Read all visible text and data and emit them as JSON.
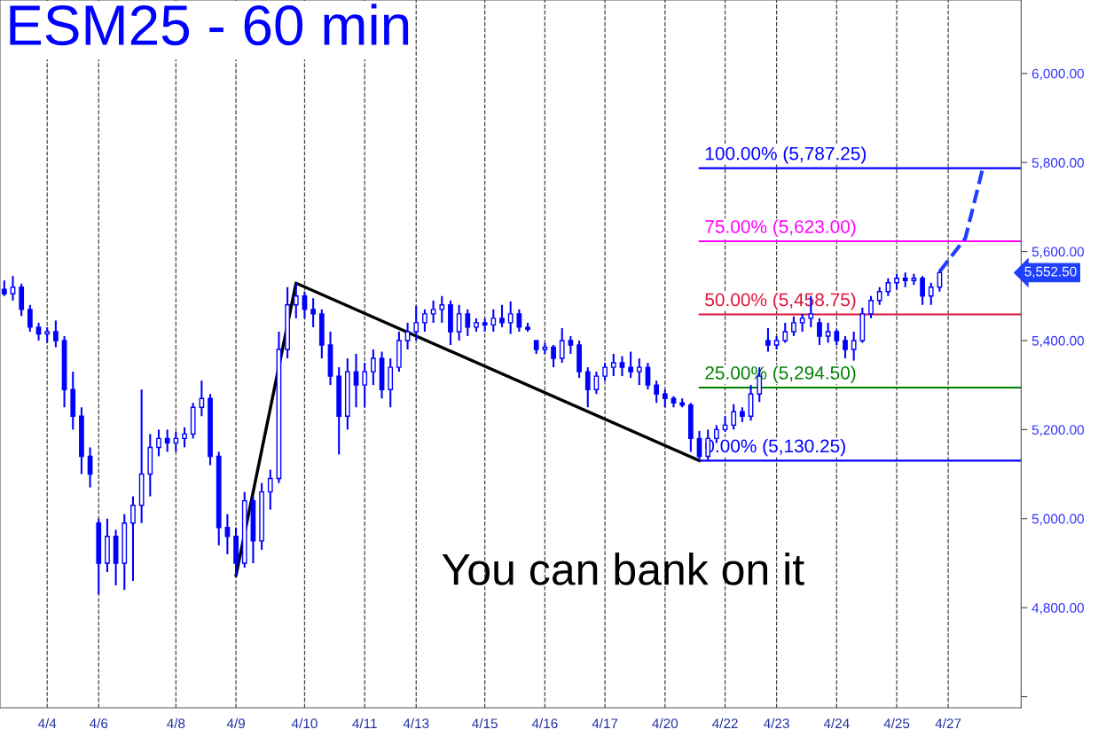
{
  "chart_data": {
    "type": "candlestick",
    "title": "ESM25 - 60 min",
    "annotations": [
      "You can bank on it",
      "5,552.50"
    ],
    "categories": [
      null,
      null,
      null,
      null,
      null,
      "4/4",
      null,
      null,
      null,
      null,
      null,
      "4/6",
      null,
      null,
      null,
      null,
      null,
      null,
      null,
      null,
      "4/8",
      null,
      null,
      null,
      null,
      null,
      null,
      "4/9",
      null,
      null,
      null,
      null,
      null,
      null,
      null,
      "4/10",
      null,
      null,
      null,
      null,
      null,
      null,
      "4/11",
      null,
      null,
      null,
      null,
      null,
      "4/13",
      null,
      null,
      null,
      null,
      null,
      null,
      null,
      "4/15",
      null,
      null,
      null,
      null,
      null,
      null,
      "4/16",
      null,
      null,
      null,
      null,
      null,
      null,
      "4/17",
      null,
      null,
      null,
      null,
      null,
      null,
      "4/20",
      null,
      null,
      null,
      null,
      null,
      null,
      "4/22",
      null,
      null,
      null,
      null,
      null,
      "4/23",
      null,
      null,
      null,
      null,
      null,
      null,
      "4/24",
      null,
      null,
      null,
      null,
      null,
      null,
      "4/25",
      null,
      null,
      null,
      null,
      null,
      "4/27",
      null,
      null,
      null,
      null,
      null,
      null,
      null,
      null
    ],
    "ylim": [
      4575,
      6165
    ],
    "yticks": [
      {
        "value": 4600,
        "label": null
      },
      {
        "value": 4800,
        "label": "4,800.00"
      },
      {
        "value": 5000,
        "label": "5,000.00"
      },
      {
        "value": 5200,
        "label": "5,200.00"
      },
      {
        "value": 5400,
        "label": "5,400.00"
      },
      {
        "value": 5600,
        "label": "5,600.00"
      },
      {
        "value": 5800,
        "label": "5,800.00"
      },
      {
        "value": 6000,
        "label": "6,000.00"
      }
    ],
    "grid": "x",
    "ref_lines": [
      {
        "axis": "y",
        "value": 5787.25,
        "label": "100.00% (5,787.25)",
        "color": "#0000ff"
      },
      {
        "axis": "y",
        "value": 5623.0,
        "label": "75.00% (5,623.00)",
        "color": "#ff00ff"
      },
      {
        "axis": "y",
        "value": 5458.75,
        "label": "50.00% (5,458.75)",
        "color": "#dc143c"
      },
      {
        "axis": "y",
        "value": 5294.5,
        "label": "25.00% (5,294.50)",
        "color": "#008000"
      },
      {
        "axis": "y",
        "value": 5130.25,
        "label": "0.00% (5,130.25)",
        "color": "#0000ff"
      }
    ],
    "series": [
      {
        "type": "line",
        "color": "#000000",
        "line_style": "solid",
        "values": [
          null,
          null,
          null,
          null,
          null,
          null,
          null,
          null,
          null,
          null,
          null,
          null,
          null,
          null,
          null,
          null,
          null,
          null,
          null,
          null,
          null,
          null,
          null,
          null,
          null,
          null,
          null,
          4872,
          null,
          null,
          null,
          null,
          null,
          null,
          5529,
          null,
          null,
          null,
          null,
          null,
          null,
          null,
          null,
          null,
          null,
          null,
          null,
          null,
          null,
          null,
          null,
          null,
          null,
          null,
          null,
          null,
          null,
          null,
          null,
          null,
          null,
          null,
          null,
          null,
          null,
          null,
          null,
          null,
          null,
          null,
          null,
          null,
          null,
          null,
          null,
          null,
          null,
          null,
          null,
          null,
          null,
          5130.25,
          null,
          null,
          null,
          null,
          null,
          null,
          null,
          null,
          null,
          null,
          null,
          null,
          null,
          null,
          null,
          null,
          null,
          null,
          null,
          null,
          null,
          null,
          null,
          null,
          null,
          null,
          null,
          null,
          null,
          null,
          null,
          null,
          null,
          null,
          null,
          null,
          null
        ]
      },
      {
        "type": "line",
        "color": "#1f3fff",
        "line_style": "dashed",
        "values": [
          null,
          null,
          null,
          null,
          null,
          null,
          null,
          null,
          null,
          null,
          null,
          null,
          null,
          null,
          null,
          null,
          null,
          null,
          null,
          null,
          null,
          null,
          null,
          null,
          null,
          null,
          null,
          null,
          null,
          null,
          null,
          null,
          null,
          null,
          null,
          null,
          null,
          null,
          null,
          null,
          null,
          null,
          null,
          null,
          null,
          null,
          null,
          null,
          null,
          null,
          null,
          null,
          null,
          null,
          null,
          null,
          null,
          null,
          null,
          null,
          null,
          null,
          null,
          null,
          null,
          null,
          null,
          null,
          null,
          null,
          null,
          null,
          null,
          null,
          null,
          null,
          null,
          null,
          null,
          null,
          null,
          null,
          null,
          null,
          null,
          null,
          null,
          null,
          null,
          null,
          null,
          null,
          null,
          null,
          null,
          null,
          null,
          null,
          null,
          null,
          null,
          null,
          null,
          null,
          null,
          null,
          null,
          null,
          null,
          5555,
          null,
          null,
          5630,
          null,
          5785,
          null,
          null,
          null,
          null
        ]
      },
      {
        "color": "#0000ff",
        "ohlc": [
          [
            5515,
            5535,
            5500,
            5505
          ],
          [
            5505,
            5545,
            5490,
            5520
          ],
          [
            5520,
            5528,
            5455,
            5470
          ],
          [
            5470,
            5480,
            5420,
            5430
          ],
          [
            5430,
            5440,
            5400,
            5415
          ],
          [
            5415,
            5430,
            5395,
            5420
          ],
          [
            5420,
            5445,
            5385,
            5400
          ],
          [
            5400,
            5410,
            5250,
            5290
          ],
          [
            5290,
            5330,
            5200,
            5230
          ],
          [
            5230,
            5250,
            5100,
            5140
          ],
          [
            5140,
            5160,
            5070,
            5100
          ],
          [
            4990,
            5000,
            4830,
            4900
          ],
          [
            4900,
            5000,
            4880,
            4960
          ],
          [
            4960,
            4975,
            4850,
            4900
          ],
          [
            4900,
            5010,
            4840,
            4990
          ],
          [
            4990,
            5050,
            4860,
            5030
          ],
          [
            5030,
            5290,
            4990,
            5100
          ],
          [
            5100,
            5190,
            5050,
            5160
          ],
          [
            5160,
            5200,
            5140,
            5180
          ],
          [
            5180,
            5200,
            5150,
            5170
          ],
          [
            5170,
            5195,
            5150,
            5180
          ],
          [
            5180,
            5205,
            5160,
            5190
          ],
          [
            5190,
            5260,
            5180,
            5250
          ],
          [
            5250,
            5310,
            5230,
            5270
          ],
          [
            5270,
            5280,
            5120,
            5140
          ],
          [
            5140,
            5150,
            4940,
            4980
          ],
          [
            4980,
            5010,
            4920,
            4960
          ],
          [
            4960,
            4980,
            4872,
            4900
          ],
          [
            4900,
            5060,
            4890,
            5040
          ],
          [
            5040,
            5050,
            4900,
            4950
          ],
          [
            4950,
            5080,
            4930,
            5060
          ],
          [
            5060,
            5110,
            5020,
            5090
          ],
          [
            5090,
            5420,
            5080,
            5380
          ],
          [
            5380,
            5520,
            5360,
            5480
          ],
          [
            5480,
            5529,
            5450,
            5500
          ],
          [
            5500,
            5510,
            5450,
            5470
          ],
          [
            5470,
            5495,
            5430,
            5460
          ],
          [
            5460,
            5470,
            5360,
            5390
          ],
          [
            5390,
            5420,
            5300,
            5320
          ],
          [
            5320,
            5340,
            5144,
            5230
          ],
          [
            5230,
            5360,
            5200,
            5330
          ],
          [
            5330,
            5370,
            5250,
            5300
          ],
          [
            5300,
            5350,
            5250,
            5330
          ],
          [
            5330,
            5380,
            5300,
            5360
          ],
          [
            5360,
            5375,
            5270,
            5290
          ],
          [
            5290,
            5360,
            5250,
            5340
          ],
          [
            5340,
            5420,
            5330,
            5400
          ],
          [
            5400,
            5440,
            5380,
            5420
          ],
          [
            5420,
            5478,
            5400,
            5440
          ],
          [
            5440,
            5470,
            5420,
            5460
          ],
          [
            5460,
            5490,
            5440,
            5470
          ],
          [
            5470,
            5500,
            5440,
            5480
          ],
          [
            5480,
            5490,
            5390,
            5420
          ],
          [
            5420,
            5480,
            5400,
            5460
          ],
          [
            5460,
            5470,
            5410,
            5430
          ],
          [
            5430,
            5450,
            5420,
            5440
          ],
          [
            5440,
            5450,
            5420,
            5435
          ],
          [
            5435,
            5470,
            5420,
            5450
          ],
          [
            5450,
            5480,
            5430,
            5440
          ],
          [
            5440,
            5488,
            5415,
            5460
          ],
          [
            5460,
            5470,
            5420,
            5430
          ],
          [
            5430,
            5440,
            5420,
            5425
          ],
          [
            5400,
            5400,
            5370,
            5380
          ],
          [
            5380,
            5395,
            5370,
            5385
          ],
          [
            5385,
            5390,
            5340,
            5360
          ],
          [
            5360,
            5428,
            5350,
            5400
          ],
          [
            5400,
            5410,
            5370,
            5390
          ],
          [
            5390,
            5400,
            5316,
            5330
          ],
          [
            5330,
            5340,
            5250,
            5290
          ],
          [
            5290,
            5330,
            5280,
            5320
          ],
          [
            5320,
            5350,
            5310,
            5340
          ],
          [
            5340,
            5370,
            5320,
            5350
          ],
          [
            5350,
            5365,
            5320,
            5340
          ],
          [
            5340,
            5375,
            5316,
            5330
          ],
          [
            5330,
            5360,
            5300,
            5340
          ],
          [
            5340,
            5350,
            5290,
            5300
          ],
          [
            5300,
            5310,
            5260,
            5280
          ],
          [
            5280,
            5290,
            5250,
            5270
          ],
          [
            5270,
            5275,
            5250,
            5260
          ],
          [
            5260,
            5270,
            5250,
            5255
          ],
          [
            5255,
            5260,
            5150,
            5180
          ],
          [
            5180,
            5197,
            5130,
            5140
          ],
          [
            5140,
            5200,
            5132,
            5180
          ],
          [
            5180,
            5210,
            5170,
            5200
          ],
          [
            5200,
            5230,
            5195,
            5210
          ],
          [
            5210,
            5257,
            5200,
            5240
          ],
          [
            5240,
            5250,
            5217,
            5230
          ],
          [
            5230,
            5300,
            5220,
            5280
          ],
          [
            5280,
            5340,
            5262,
            5320
          ],
          [
            5400,
            5428,
            5375,
            5390
          ],
          [
            5390,
            5410,
            5380,
            5400
          ],
          [
            5400,
            5440,
            5395,
            5420
          ],
          [
            5420,
            5454,
            5410,
            5440
          ],
          [
            5440,
            5460,
            5420,
            5450
          ],
          [
            5450,
            5500,
            5430,
            5460
          ],
          [
            5440,
            5450,
            5390,
            5410
          ],
          [
            5410,
            5440,
            5395,
            5420
          ],
          [
            5420,
            5425,
            5390,
            5400
          ],
          [
            5400,
            5410,
            5360,
            5380
          ],
          [
            5380,
            5420,
            5355,
            5400
          ],
          [
            5400,
            5474,
            5395,
            5460
          ],
          [
            5460,
            5500,
            5450,
            5490
          ],
          [
            5490,
            5520,
            5480,
            5510
          ],
          [
            5510,
            5540,
            5500,
            5530
          ],
          [
            5530,
            5550,
            5515,
            5540
          ],
          [
            5540,
            5553,
            5520,
            5535
          ],
          [
            5535,
            5550,
            5525,
            5540
          ],
          [
            5540,
            5545,
            5480,
            5500
          ],
          [
            5500,
            5530,
            5480,
            5520
          ],
          [
            5520,
            5557,
            5510,
            5552.5
          ],
          null,
          null,
          null,
          null,
          null,
          null,
          null,
          null,
          null
        ]
      }
    ]
  }
}
